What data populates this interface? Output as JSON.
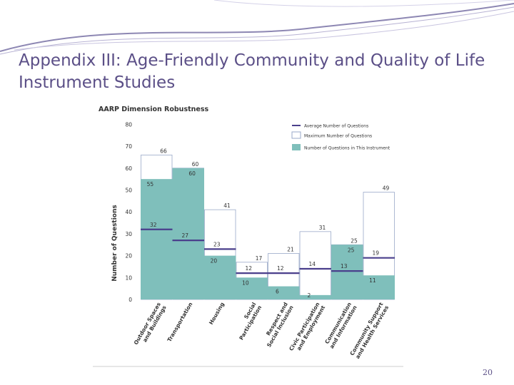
{
  "slide": {
    "title": "Appendix III: Age-Friendly Community and Quality of Life Instrument Studies",
    "page_number": "20"
  },
  "colors": {
    "title": "#5b4f87",
    "teal_fill": "#7fbfbb",
    "average_line": "#4a3f8c",
    "max_box_border": "#9aa9c9",
    "decoration_swoosh": "#8d87b3"
  },
  "chart_data": {
    "type": "bar",
    "title": "AARP Dimension Robustness",
    "ylabel": "Number of Questions",
    "xlabel": "",
    "ylim": [
      0,
      80
    ],
    "yticks": [
      0,
      10,
      20,
      30,
      40,
      50,
      60,
      70,
      80
    ],
    "categories": [
      "Outdoor Spaces and Buildings",
      "Transportation",
      "Housing",
      "Social Participation",
      "Respect and Social Inclusion",
      "Civic Participation and Employment",
      "Communication and Information",
      "Community Support and Health Services"
    ],
    "legend_position": "top-right",
    "series": [
      {
        "name": "Average Number of Questions",
        "kind": "line-marker",
        "values": [
          32,
          27,
          23,
          12,
          12,
          14,
          13,
          19
        ]
      },
      {
        "name": "Maximum Number of Questions",
        "kind": "outline-box",
        "values": [
          66,
          60,
          41,
          17,
          21,
          31,
          25,
          49
        ]
      },
      {
        "name": "Number of Questions in This Instrument",
        "kind": "fill",
        "values": [
          55,
          60,
          20,
          10,
          6,
          2,
          25,
          11
        ]
      }
    ]
  }
}
